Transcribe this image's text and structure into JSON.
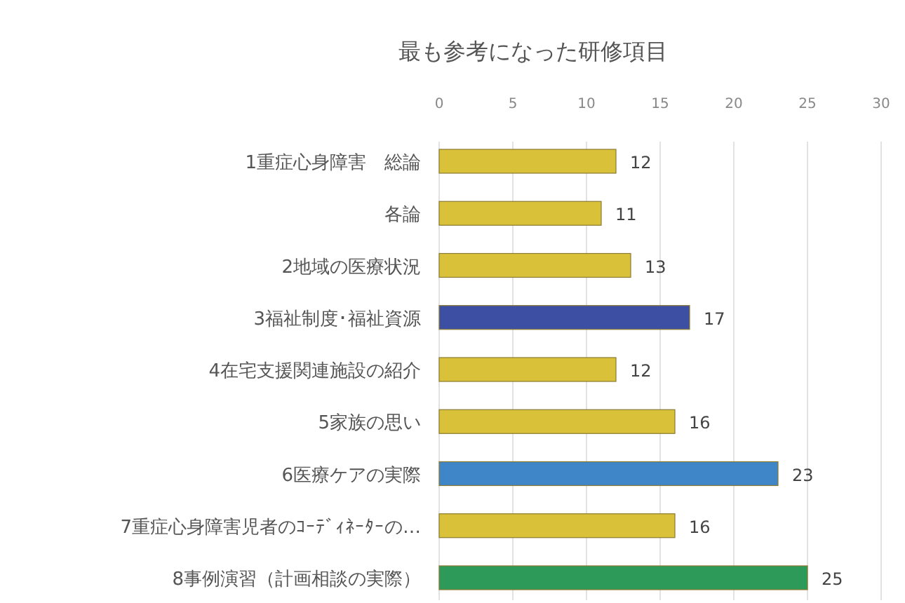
{
  "chart_data": {
    "type": "bar",
    "orientation": "horizontal",
    "title": "最も参考になった研修項目",
    "categories": [
      "1重症心身障害　総論",
      "各論",
      "2地域の医療状況",
      "3福祉制度･福祉資源",
      "4在宅支援関連施設の紹介",
      "5家族の思い",
      "6医療ケアの実際",
      "7重症心身障害児者のｺｰﾃﾞｨﾈｰﾀｰの…",
      "8事例演習（計画相談の実際）"
    ],
    "values": [
      12,
      11,
      13,
      17,
      12,
      16,
      23,
      16,
      25
    ],
    "colors": [
      "#d9c23a",
      "#d9c23a",
      "#d9c23a",
      "#3d4fa3",
      "#d9c23a",
      "#d9c23a",
      "#3f86c8",
      "#d9c23a",
      "#2e9a5a"
    ],
    "xlim": [
      0,
      30
    ],
    "xticks": [
      0,
      5,
      10,
      15,
      20,
      25,
      30
    ],
    "grid": "x",
    "data_labels": true
  }
}
